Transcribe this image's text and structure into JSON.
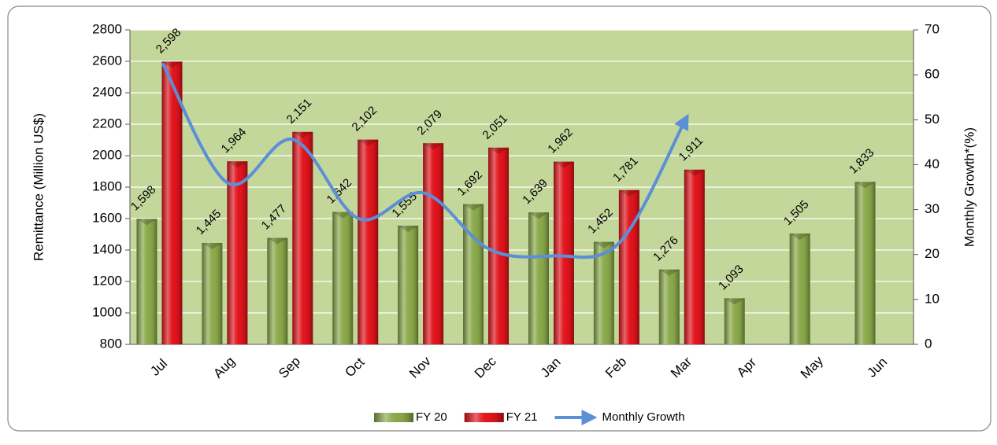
{
  "chart_data": {
    "type": "bar",
    "categories": [
      "Jul",
      "Aug",
      "Sep",
      "Oct",
      "Nov",
      "Dec",
      "Jan",
      "Feb",
      "Mar",
      "Apr",
      "May",
      "Jun"
    ],
    "series": [
      {
        "name": "FY 20",
        "color": "#8aa84a",
        "values": [
          1598,
          1445,
          1477,
          1642,
          1555,
          1692,
          1639,
          1452,
          1276,
          1093,
          1505,
          1833
        ],
        "value_labels": [
          "1,598",
          "1,445",
          "1,477",
          "1,642",
          "1,555",
          "1,692",
          "1,639",
          "1,452",
          "1,276",
          "1,093",
          "1,505",
          "1,833"
        ]
      },
      {
        "name": "FY 21",
        "color": "#e0141c",
        "values": [
          2598,
          1964,
          2151,
          2102,
          2079,
          2051,
          1962,
          1781,
          1911,
          null,
          null,
          null
        ],
        "value_labels": [
          "2,598",
          "1,964",
          "2,151",
          "2,102",
          "2,079",
          "2,051",
          "1,962",
          "1,781",
          "1,911",
          null,
          null,
          null
        ]
      },
      {
        "name": "Monthly Growth",
        "color": "#5b8fd6",
        "type": "line",
        "axis": "y2",
        "values": [
          62.6,
          35.9,
          45.6,
          28.0,
          33.7,
          21.2,
          19.7,
          22.7,
          49.8,
          null,
          null,
          null
        ]
      }
    ],
    "y_label": "Remittance (Million US$)",
    "y2_label": "Monthly Growth*(%)",
    "ylim": [
      800,
      2800
    ],
    "yticks": [
      800,
      1000,
      1200,
      1400,
      1600,
      1800,
      2000,
      2200,
      2400,
      2600,
      2800
    ],
    "y2lim": [
      0,
      70
    ],
    "y2ticks": [
      0,
      10,
      20,
      30,
      40,
      50,
      60,
      70
    ],
    "grid": true,
    "plot_background": "#c4d79b",
    "legend": "bottom"
  }
}
